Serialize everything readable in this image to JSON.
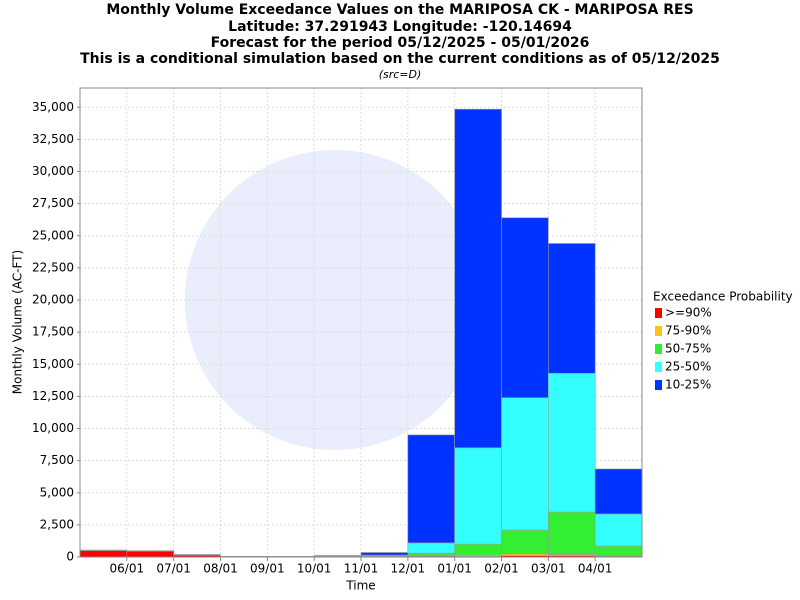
{
  "chart_data": {
    "type": "stacked_bar",
    "title": "Monthly Volume Exceedance Values on the MARIPOSA CK - MARIPOSA RES",
    "subtitle": [
      "Latitude: 37.291943 Longitude: -120.14694",
      "Forecast for the period 05/12/2025 - 05/01/2026",
      "This is a conditional simulation based on the current conditions as of 05/12/2025"
    ],
    "note": "(src=D)",
    "x_label": "Time",
    "y_label": "Monthly Volume (AC-FT)",
    "xticks": [
      "06/01",
      "07/01",
      "08/01",
      "09/01",
      "10/01",
      "11/01",
      "12/01",
      "01/01",
      "02/01",
      "03/01",
      "04/01"
    ],
    "ylim": [
      0,
      36500
    ],
    "yticks": [
      0,
      {
        "value": 2500,
        "label": "2,500"
      },
      {
        "value": 5000,
        "label": "5,000"
      },
      {
        "value": 7500,
        "label": "7,500"
      },
      {
        "value": 10000,
        "label": "10,000"
      },
      {
        "value": 12500,
        "label": "12,500"
      },
      {
        "value": 15000,
        "label": "15,000"
      },
      {
        "value": 17500,
        "label": "17,500"
      },
      {
        "value": 20000,
        "label": "20,000"
      },
      {
        "value": 22500,
        "label": "22,500"
      },
      {
        "value": 25000,
        "label": "25,000"
      },
      {
        "value": 27500,
        "label": "27,500"
      },
      {
        "value": 30000,
        "label": "30,000"
      },
      {
        "value": 32500,
        "label": "32,500"
      },
      {
        "value": 35000,
        "label": "35,000"
      }
    ],
    "grid": true,
    "legend_title": "Exceedance Probability",
    "legend": "right",
    "series": [
      {
        "name": ">=90%",
        "color": "#ff0000",
        "values": [
          500,
          450,
          150,
          30,
          20,
          40,
          60,
          80,
          50,
          100,
          100,
          50
        ]
      },
      {
        "name": "75-90%",
        "color": "#ffc020",
        "values": [
          10,
          10,
          10,
          5,
          5,
          10,
          20,
          70,
          100,
          150,
          100,
          30
        ]
      },
      {
        "name": "50-75%",
        "color": "#33ee33",
        "values": [
          10,
          10,
          10,
          5,
          5,
          20,
          20,
          150,
          850,
          1850,
          3300,
          770
        ]
      },
      {
        "name": "25-50%",
        "color": "#33ffff",
        "values": [
          10,
          10,
          10,
          5,
          5,
          30,
          50,
          800,
          7500,
          10300,
          10800,
          2500
        ]
      },
      {
        "name": "10-25%",
        "color": "#0033ff",
        "values": [
          10,
          10,
          10,
          5,
          5,
          20,
          200,
          8400,
          26350,
          14000,
          10100,
          3500
        ]
      }
    ]
  }
}
